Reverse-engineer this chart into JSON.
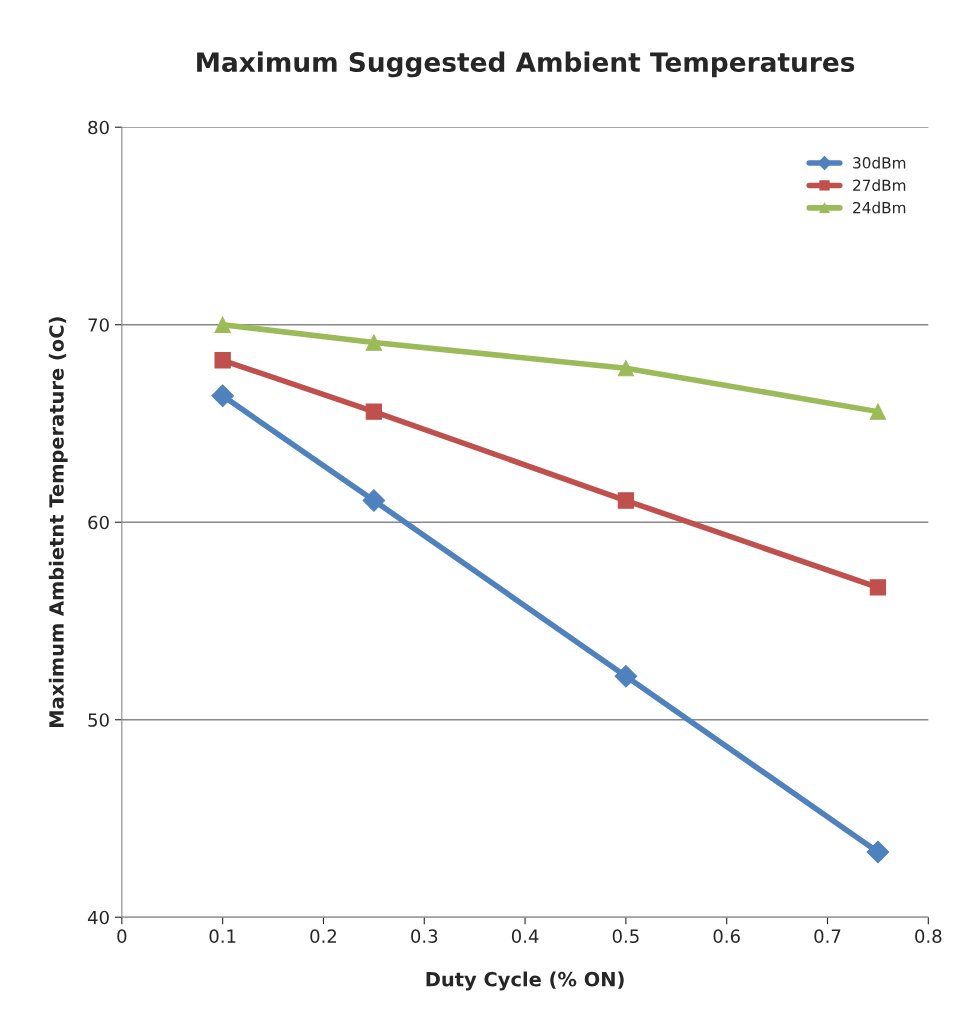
{
  "chart_data": {
    "type": "line",
    "title": "Maximum Suggested Ambient Temperatures",
    "xlabel": "Duty Cycle (% ON)",
    "ylabel": "Maximum Ambietnt Temperature (oC)",
    "x": [
      0.1,
      0.25,
      0.5,
      0.75
    ],
    "series": [
      {
        "name": "30dBm",
        "color": "#4f81bd",
        "marker": "diamond",
        "values": [
          66.4,
          61.1,
          52.2,
          43.3
        ]
      },
      {
        "name": "27dBm",
        "color": "#c0504d",
        "marker": "square",
        "values": [
          68.2,
          65.6,
          61.1,
          56.7
        ]
      },
      {
        "name": "24dBm",
        "color": "#9bbb59",
        "marker": "triangle",
        "values": [
          70.0,
          69.1,
          67.8,
          65.6
        ]
      }
    ],
    "xlim": [
      0,
      0.8
    ],
    "xticks": [
      0,
      0.1,
      0.2,
      0.3,
      0.4,
      0.5,
      0.6,
      0.7,
      0.8
    ],
    "ylim": [
      40,
      80
    ],
    "yticks": [
      40,
      50,
      60,
      70,
      80
    ],
    "grid": "y",
    "legend": "top right",
    "line_style": "solid"
  }
}
